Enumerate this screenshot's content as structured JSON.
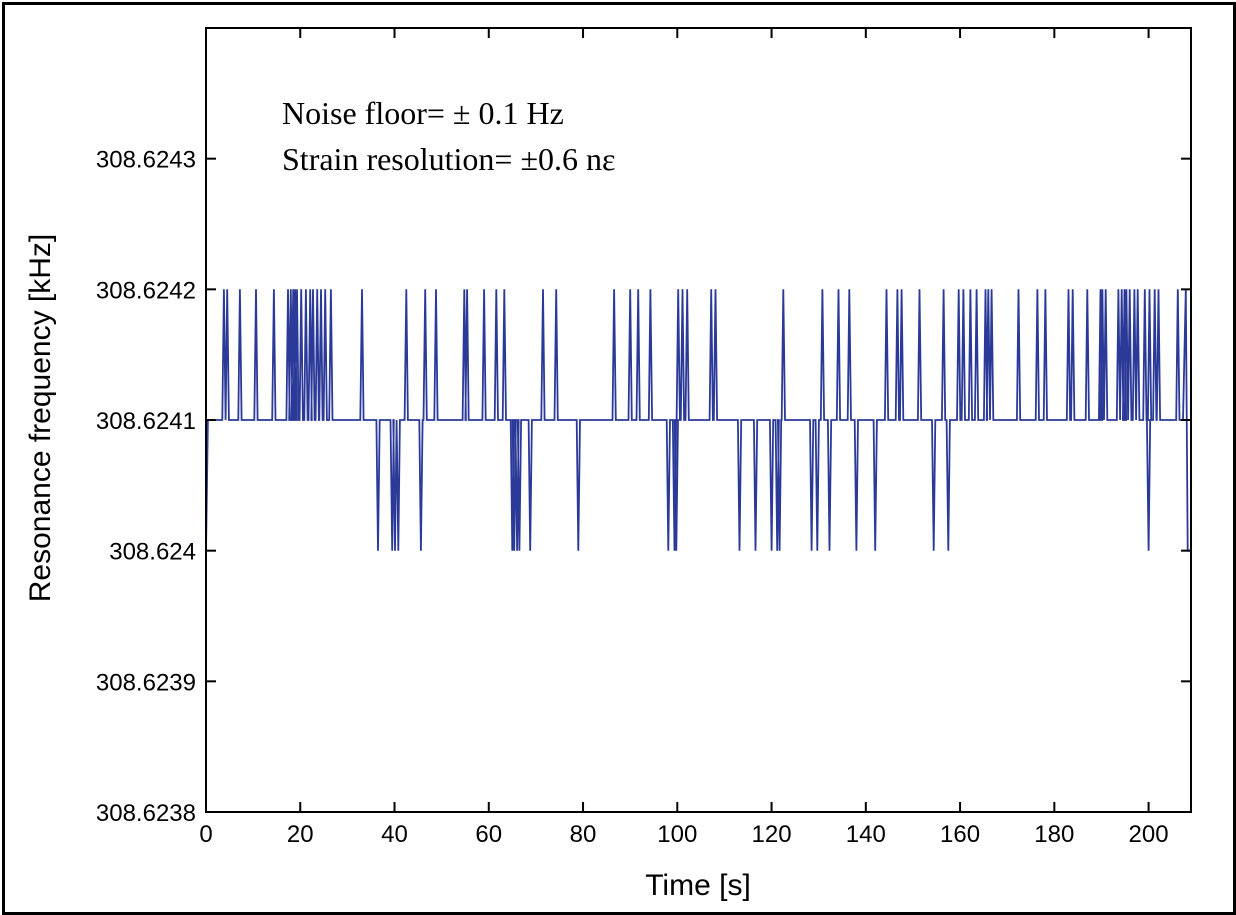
{
  "chart_data": {
    "type": "line",
    "xlabel": "Time [s]",
    "ylabel": "Resonance frequency [kHz]",
    "xlim": [
      0,
      209
    ],
    "ylim": [
      308.6238,
      308.6244
    ],
    "xticks": [
      0,
      20,
      40,
      60,
      80,
      100,
      120,
      140,
      160,
      180,
      200
    ],
    "xtick_labels": [
      "0",
      "20",
      "40",
      "60",
      "80",
      "100",
      "120",
      "140",
      "160",
      "180",
      "200"
    ],
    "yticks": [
      308.6238,
      308.6239,
      308.624,
      308.6241,
      308.6242,
      308.6243
    ],
    "ytick_labels": [
      "308.6238",
      "308.6239",
      "308.624",
      "308.6241",
      "308.6242",
      "308.6243"
    ],
    "grid": false,
    "line_color": "#2b3a98",
    "annotations": [
      "Noise floor=  ± 0.1 Hz",
      "Strain resolution=  ±0.6 nε"
    ],
    "series": [
      {
        "baseline": 308.6241,
        "start_value": 308.624,
        "end_value": 308.624,
        "up_value": 308.6242,
        "down_value": 308.624,
        "up_spike_times": [
          3.8,
          4.5,
          7.2,
          10.6,
          14.4,
          17.4,
          18.0,
          18.5,
          18.9,
          19.3,
          20.2,
          21.2,
          22.1,
          22.7,
          23.6,
          24.4,
          25.3,
          26.5,
          33.1,
          42.5,
          46.5,
          48.8,
          54.8,
          55.4,
          59.0,
          61.6,
          63.3,
          71.5,
          74.3,
          86.6,
          90.0,
          91.7,
          94.3,
          100.2,
          101.1,
          102.1,
          107.2,
          108.1,
          122.5,
          130.8,
          134.2,
          136.5,
          144.4,
          146.7,
          147.6,
          151.4,
          156.5,
          159.7,
          160.7,
          162.2,
          163.5,
          165.4,
          166.0,
          166.7,
          172.4,
          176.4,
          178.1,
          183.0,
          183.9,
          187.0,
          189.8,
          190.2,
          190.9,
          193.6,
          194.3,
          194.9,
          195.3,
          196.0,
          197.0,
          197.7,
          199.2,
          200.2,
          201.3,
          202.1,
          206.2
        ],
        "down_spike_times": [
          36.5,
          39.5,
          40.1,
          40.8,
          45.6,
          65.0,
          65.4,
          66.0,
          66.5,
          68.8,
          79.0,
          98.1,
          99.4,
          99.8,
          113.2,
          116.6,
          120.0,
          121.2,
          121.7,
          128.5,
          129.7,
          132.3,
          138.0,
          142.0,
          154.4,
          157.5,
          200.0
        ]
      }
    ]
  }
}
